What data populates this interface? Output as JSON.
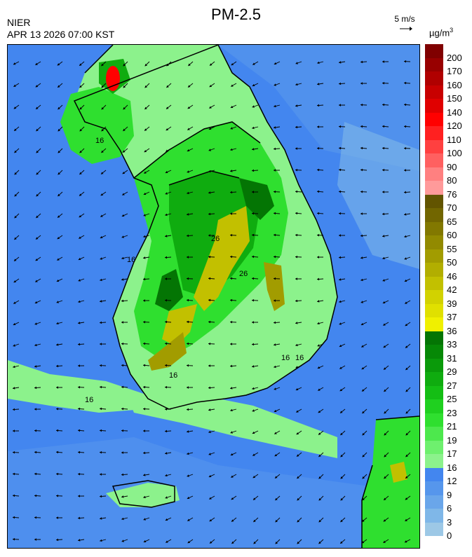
{
  "header": {
    "title": "PM-2.5",
    "agency": "NIER",
    "timestamp": "APR 13 2026 07:00 KST",
    "wind_reference": "5 m/s",
    "unit_base": "µg/m",
    "unit_exp": "3"
  },
  "legend": {
    "levels": [
      {
        "label": "0",
        "color": "#9dc8e6"
      },
      {
        "label": "3",
        "color": "#7fb7e8"
      },
      {
        "label": "6",
        "color": "#6aa6ea"
      },
      {
        "label": "9",
        "color": "#5696ec"
      },
      {
        "label": "12",
        "color": "#4386ef"
      },
      {
        "label": "16",
        "color": "#8cf28c"
      },
      {
        "label": "17",
        "color": "#6ef06e"
      },
      {
        "label": "19",
        "color": "#4de84d"
      },
      {
        "label": "21",
        "color": "#2fdf2f"
      },
      {
        "label": "23",
        "color": "#1fd01f"
      },
      {
        "label": "25",
        "color": "#14be14"
      },
      {
        "label": "27",
        "color": "#0fac0f"
      },
      {
        "label": "29",
        "color": "#0a9a0a"
      },
      {
        "label": "31",
        "color": "#068806"
      },
      {
        "label": "33",
        "color": "#047504"
      },
      {
        "label": "36",
        "color": "#f0f000"
      },
      {
        "label": "37",
        "color": "#e0e000"
      },
      {
        "label": "39",
        "color": "#d2d200"
      },
      {
        "label": "42",
        "color": "#c2c000"
      },
      {
        "label": "46",
        "color": "#b2ae00"
      },
      {
        "label": "50",
        "color": "#a29c00"
      },
      {
        "label": "55",
        "color": "#928a00"
      },
      {
        "label": "60",
        "color": "#827800"
      },
      {
        "label": "65",
        "color": "#726600"
      },
      {
        "label": "70",
        "color": "#625400"
      },
      {
        "label": "76",
        "color": "#ff9a9a"
      },
      {
        "label": "80",
        "color": "#ff8080"
      },
      {
        "label": "90",
        "color": "#ff6060"
      },
      {
        "label": "100",
        "color": "#ff4040"
      },
      {
        "label": "110",
        "color": "#ff2020"
      },
      {
        "label": "120",
        "color": "#ff0000"
      },
      {
        "label": "140",
        "color": "#e00000"
      },
      {
        "label": "150",
        "color": "#c80000"
      },
      {
        "label": "160",
        "color": "#b00000"
      },
      {
        "label": "170",
        "color": "#980000"
      },
      {
        "label": "200",
        "color": "#800000"
      }
    ],
    "top_color": "#700000"
  },
  "map": {
    "contour_labels": [
      "16",
      "16",
      "16",
      "16",
      "16",
      "16",
      "26",
      "26"
    ],
    "colors": {
      "sea": "#4386ef",
      "sea_light": "#5696ec",
      "sea_pale": "#7fb7e8",
      "land_low": "#8cf28c",
      "land_mid": "#2fdf2f",
      "land_high": "#0fac0f",
      "land_peak": "#047504",
      "hot_yellow": "#c2c000",
      "hot_olive": "#a29c00",
      "hotspot_red": "#ff0000"
    }
  }
}
